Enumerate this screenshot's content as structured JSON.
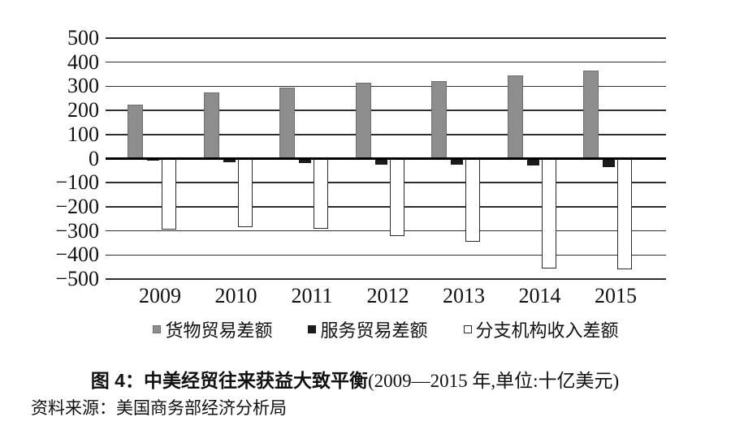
{
  "chart_data": {
    "type": "bar",
    "title": "图4：中美经贸往来获益大致平衡(2009—2015年,单位:十亿美元)",
    "xlabel": "",
    "ylabel": "",
    "categories": [
      "2009",
      "2010",
      "2011",
      "2012",
      "2013",
      "2014",
      "2015"
    ],
    "series": [
      {
        "name": "货物贸易差额",
        "color": "#8d8d8d",
        "border_color": "#6e6e6e",
        "values": [
          225,
          275,
          295,
          315,
          320,
          345,
          365
        ]
      },
      {
        "name": "服务贸易差额",
        "color": "#1b1b1b",
        "border_color": "#1b1b1b",
        "values": [
          -10,
          -15,
          -20,
          -25,
          -25,
          -30,
          -35
        ]
      },
      {
        "name": "分支机构收入差额",
        "color": "#ffffff",
        "border_color": "#2b2b2b",
        "values": [
          -295,
          -285,
          -290,
          -320,
          -345,
          -455,
          -460
        ]
      }
    ],
    "ylim": [
      -500,
      500
    ],
    "ytick_values": [
      500,
      400,
      300,
      200,
      100,
      0,
      -100,
      -200,
      -300,
      -400,
      -500
    ],
    "ytick_labels": [
      "500",
      "400",
      "300",
      "200",
      "100",
      "0",
      "−100",
      "−200",
      "−300",
      "−400",
      "−500"
    ],
    "grid": true,
    "legend_position": "bottom"
  },
  "caption": {
    "title_bold": "图 4：中美经贸往来获益大致平衡",
    "title_note": "(2009—2015 年,单位:十亿美元)"
  },
  "source": {
    "text": "资料来源：美国商务部经济分析局"
  }
}
